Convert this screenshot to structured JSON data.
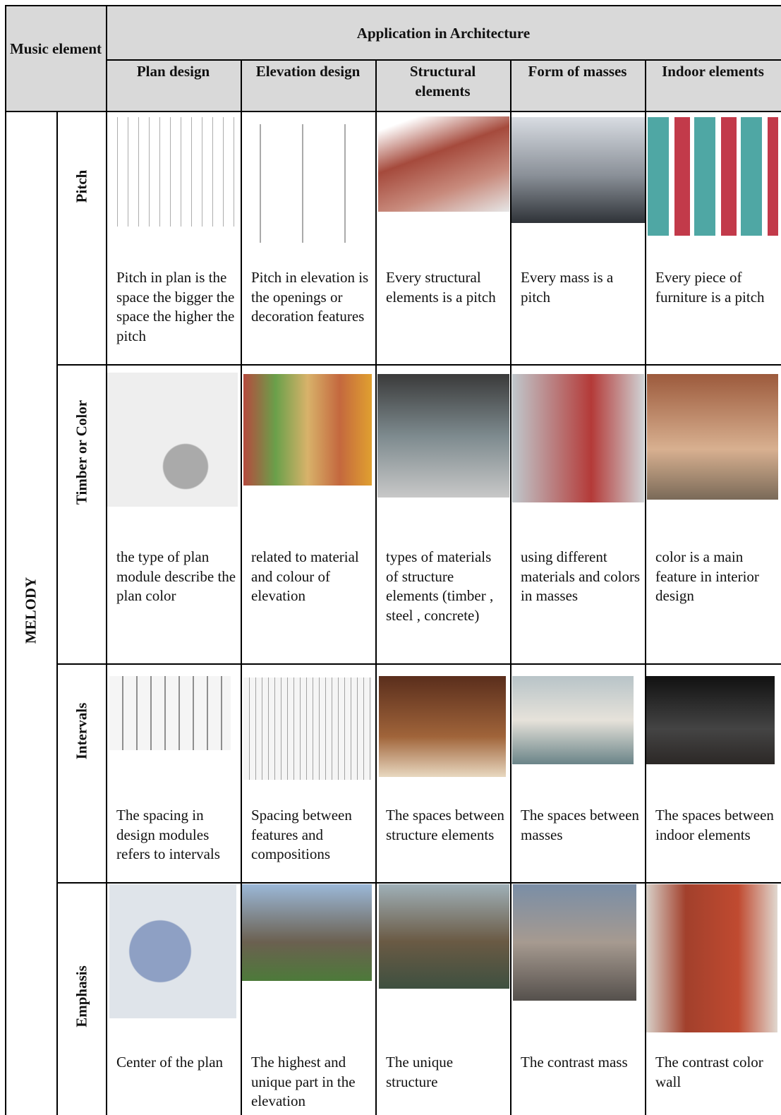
{
  "header": {
    "music_element": "Music element",
    "application": "Application in Architecture",
    "columns": [
      "Plan design",
      "Elevation design",
      "Structural elements",
      "Form of masses",
      "Indoor elements"
    ]
  },
  "group": "MELODY",
  "rows": [
    {
      "label": "Pitch",
      "cells": [
        "Pitch in plan is the space the bigger the space the higher the pitch",
        "Pitch in elevation is the openings or decoration features",
        "Every structural elements is a pitch",
        "Every mass is a pitch",
        "Every piece of furniture is a pitch"
      ]
    },
    {
      "label": "Timber or Color",
      "cells": [
        "the type of plan module describe the plan color",
        "related to material and colour of elevation",
        "types of materials of structure elements (timber , steel , concrete)",
        "using different materials and colors in masses",
        "color is a main feature in interior design"
      ]
    },
    {
      "label": "Intervals",
      "cells": [
        "The spacing in design modules refers to intervals",
        "Spacing between features and compositions",
        "The spaces between structure elements",
        "The spaces between masses",
        "The spaces between indoor elements"
      ]
    },
    {
      "label": "Emphasis",
      "cells": [
        "Center of the plan",
        "The highest and unique part in the elevation",
        "The unique structure",
        "The contrast mass",
        "The contrast color wall"
      ]
    }
  ]
}
